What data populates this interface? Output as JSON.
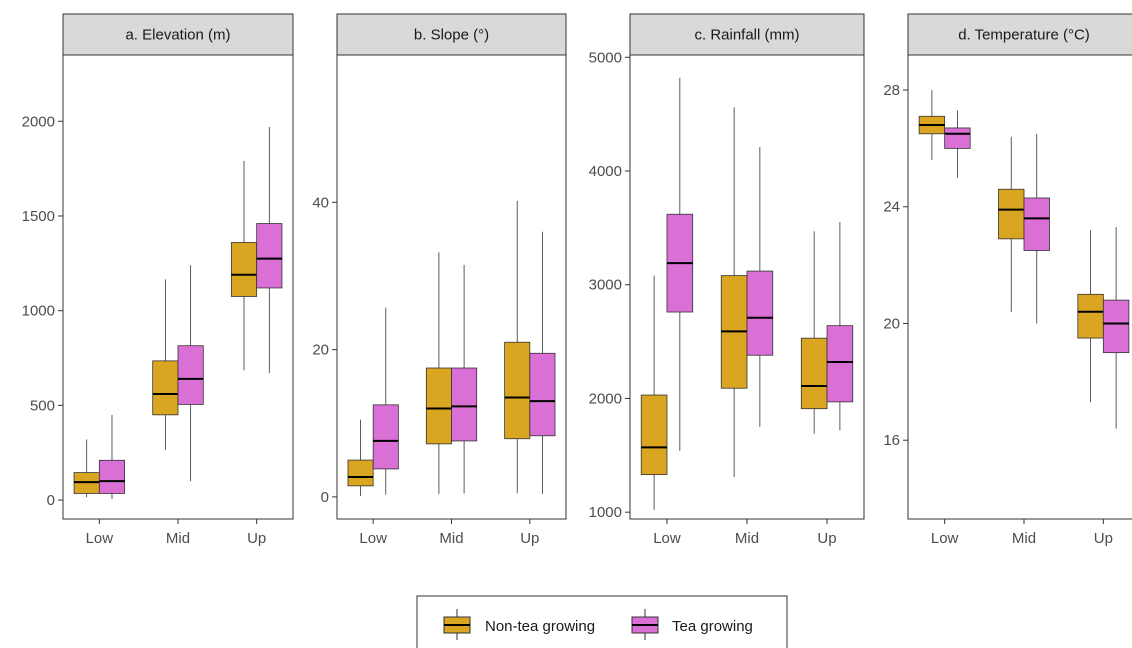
{
  "chart_data": [
    {
      "type": "box",
      "title": "a. Elevation (m)",
      "categories": [
        "Low",
        "Mid",
        "Up"
      ],
      "ylim": [
        -100,
        2350
      ],
      "yticks": [
        0,
        500,
        1000,
        1500,
        2000
      ],
      "series": [
        {
          "name": "Non-tea growing",
          "boxes": [
            {
              "min": 15,
              "q1": 35,
              "median": 95,
              "q3": 145,
              "max": 320
            },
            {
              "min": 265,
              "q1": 450,
              "median": 560,
              "q3": 735,
              "max": 1165
            },
            {
              "min": 685,
              "q1": 1075,
              "median": 1190,
              "q3": 1360,
              "max": 1790
            }
          ]
        },
        {
          "name": "Tea growing",
          "boxes": [
            {
              "min": 5,
              "q1": 35,
              "median": 100,
              "q3": 210,
              "max": 450
            },
            {
              "min": 100,
              "q1": 505,
              "median": 640,
              "q3": 815,
              "max": 1240
            },
            {
              "min": 670,
              "q1": 1120,
              "median": 1275,
              "q3": 1460,
              "max": 1970
            }
          ]
        }
      ]
    },
    {
      "type": "box",
      "title": "b. Slope (°)",
      "categories": [
        "Low",
        "Mid",
        "Up"
      ],
      "ylim": [
        -3,
        60
      ],
      "yticks": [
        0,
        20,
        40
      ],
      "series": [
        {
          "name": "Non-tea growing",
          "boxes": [
            {
              "min": 0.1,
              "q1": 1.5,
              "median": 2.7,
              "q3": 5.0,
              "max": 10.5
            },
            {
              "min": 0.4,
              "q1": 7.2,
              "median": 12.0,
              "q3": 17.5,
              "max": 33.2
            },
            {
              "min": 0.5,
              "q1": 7.9,
              "median": 13.5,
              "q3": 21.0,
              "max": 40.2
            }
          ]
        },
        {
          "name": "Tea growing",
          "boxes": [
            {
              "min": 0.3,
              "q1": 3.8,
              "median": 7.6,
              "q3": 12.5,
              "max": 25.7
            },
            {
              "min": 0.5,
              "q1": 7.6,
              "median": 12.3,
              "q3": 17.5,
              "max": 31.5
            },
            {
              "min": 0.4,
              "q1": 8.3,
              "median": 13.0,
              "q3": 19.5,
              "max": 36.0
            }
          ]
        }
      ]
    },
    {
      "type": "box",
      "title": "c. Rainfall (mm)",
      "categories": [
        "Low",
        "Mid",
        "Up"
      ],
      "ylim": [
        940,
        5020
      ],
      "yticks": [
        1000,
        2000,
        3000,
        4000,
        5000
      ],
      "series": [
        {
          "name": "Non-tea growing",
          "boxes": [
            {
              "min": 1020,
              "q1": 1330,
              "median": 1570,
              "q3": 2030,
              "max": 3080
            },
            {
              "min": 1310,
              "q1": 2090,
              "median": 2590,
              "q3": 3080,
              "max": 4560
            },
            {
              "min": 1690,
              "q1": 1910,
              "median": 2110,
              "q3": 2530,
              "max": 3470
            }
          ]
        },
        {
          "name": "Tea growing",
          "boxes": [
            {
              "min": 1540,
              "q1": 2760,
              "median": 3190,
              "q3": 3620,
              "max": 4820
            },
            {
              "min": 1750,
              "q1": 2380,
              "median": 2710,
              "q3": 3120,
              "max": 4210
            },
            {
              "min": 1720,
              "q1": 1970,
              "median": 2320,
              "q3": 2640,
              "max": 3550
            }
          ]
        }
      ]
    },
    {
      "type": "box",
      "title": "d. Temperature (°C)",
      "categories": [
        "Low",
        "Mid",
        "Up"
      ],
      "ylim": [
        13.3,
        29.2
      ],
      "yticks": [
        16,
        20,
        24,
        28
      ],
      "series": [
        {
          "name": "Non-tea growing",
          "boxes": [
            {
              "min": 25.6,
              "q1": 26.5,
              "median": 26.8,
              "q3": 27.1,
              "max": 28.0
            },
            {
              "min": 20.4,
              "q1": 22.9,
              "median": 23.9,
              "q3": 24.6,
              "max": 26.4
            },
            {
              "min": 17.3,
              "q1": 19.5,
              "median": 20.4,
              "q3": 21.0,
              "max": 23.2
            }
          ]
        },
        {
          "name": "Tea growing",
          "boxes": [
            {
              "min": 25.0,
              "q1": 26.0,
              "median": 26.5,
              "q3": 26.7,
              "max": 27.3
            },
            {
              "min": 20.0,
              "q1": 22.5,
              "median": 23.6,
              "q3": 24.3,
              "max": 26.5
            },
            {
              "min": 16.4,
              "q1": 19.0,
              "median": 20.0,
              "q3": 20.8,
              "max": 23.3
            }
          ]
        }
      ]
    }
  ],
  "legend": {
    "placement": "bottom",
    "items": [
      {
        "label": "Non-tea growing",
        "color": "#DAA520"
      },
      {
        "label": "Tea growing",
        "color": "#DA70D6"
      }
    ]
  },
  "colors": {
    "non_tea": "#DAA520",
    "tea": "#DA70D6",
    "strip_bg": "#D9D9D9",
    "outline": "#333333"
  }
}
